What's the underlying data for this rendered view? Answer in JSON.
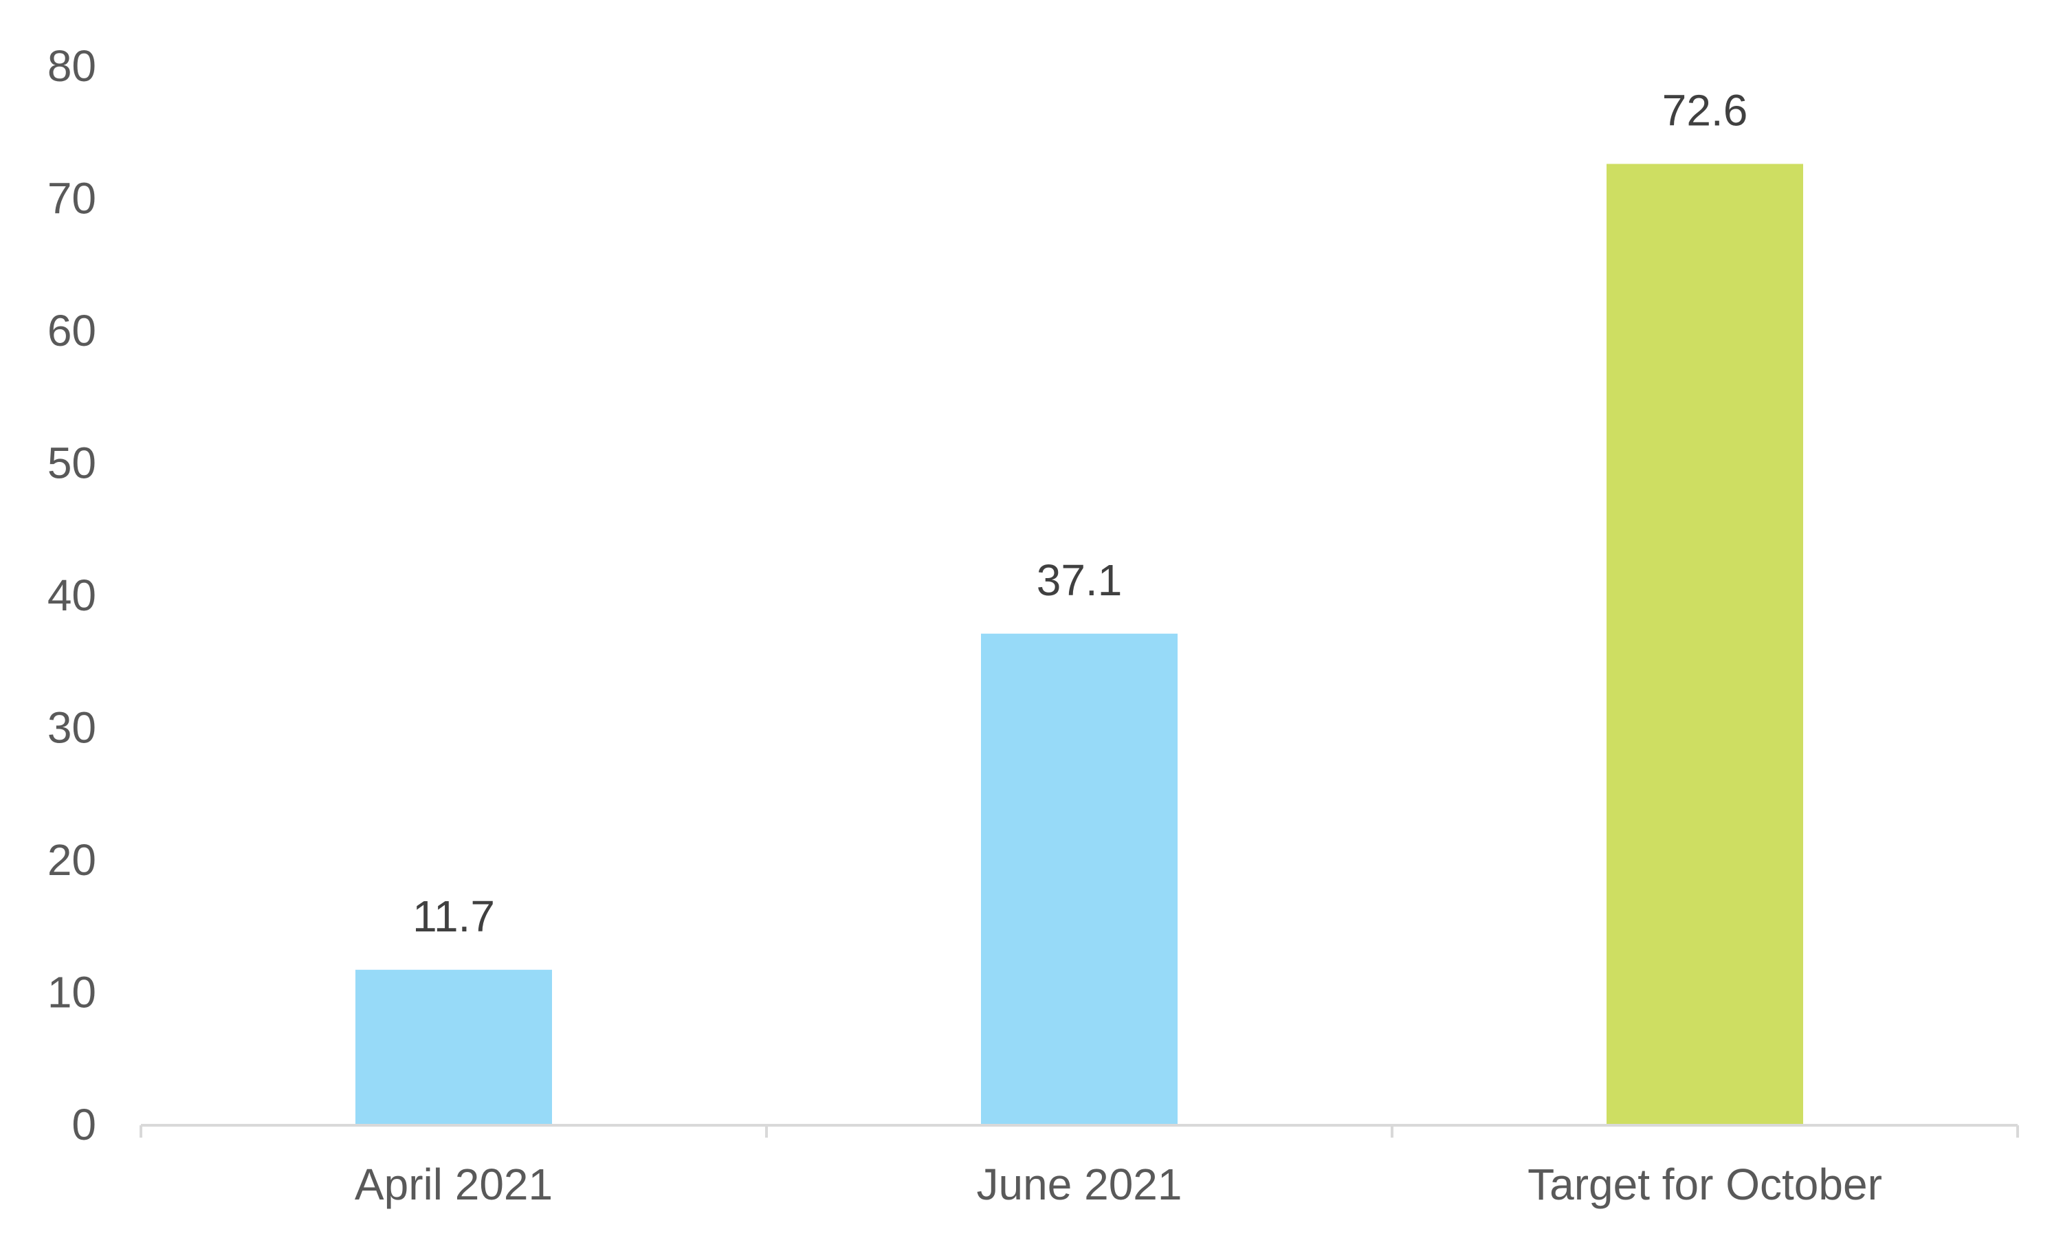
{
  "chart_data": {
    "type": "bar",
    "categories": [
      "April 2021",
      "June 2021",
      "Target for October"
    ],
    "values": [
      11.7,
      37.1,
      72.6
    ],
    "data_labels": [
      "11.7",
      "37.1",
      "72.6"
    ],
    "bar_colors": [
      "#97DAF8",
      "#97DAF8",
      "#CEDE62"
    ],
    "title": "",
    "xlabel": "",
    "ylabel": "",
    "ylim": [
      0,
      80
    ],
    "yticks": [
      0,
      10,
      20,
      30,
      40,
      50,
      60,
      70,
      80
    ],
    "ytick_labels": [
      "0",
      "10",
      "20",
      "30",
      "40",
      "50",
      "60",
      "70",
      "80"
    ],
    "grid": false,
    "legend": "none",
    "colors": {
      "axis": "#D9D9D9",
      "tick_text": "#595959",
      "label_text": "#404040"
    }
  }
}
